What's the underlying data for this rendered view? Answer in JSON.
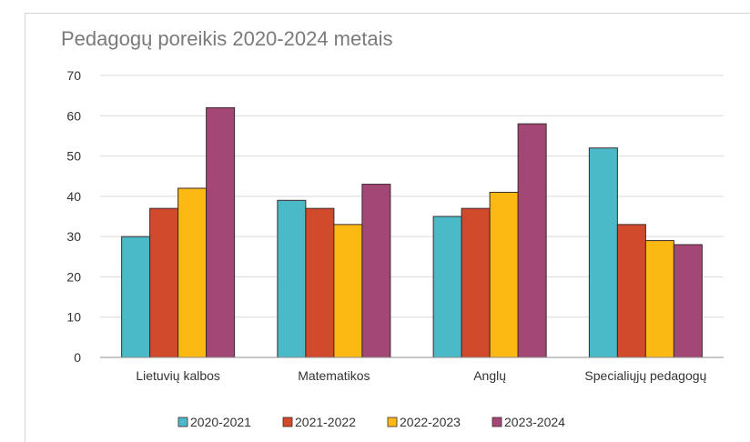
{
  "chart_data": {
    "type": "bar",
    "title": "Pedagogų poreikis 2020-2024 metais",
    "xlabel": "",
    "ylabel": "",
    "ylim": [
      0,
      70
    ],
    "yticks": [
      0,
      10,
      20,
      30,
      40,
      50,
      60,
      70
    ],
    "grid": true,
    "legend_position": "bottom",
    "categories": [
      "Lietuvių kalbos",
      "Matematikos",
      "Anglų",
      "Specialiųjų pedagogų"
    ],
    "series": [
      {
        "name": "2020-2021",
        "color": "#4bbac8",
        "values": [
          30,
          39,
          35,
          52
        ]
      },
      {
        "name": "2021-2022",
        "color": "#d04a2b",
        "values": [
          37,
          37,
          37,
          33
        ]
      },
      {
        "name": "2022-2023",
        "color": "#fdb913",
        "values": [
          42,
          33,
          41,
          29
        ]
      },
      {
        "name": "2023-2024",
        "color": "#a34876",
        "values": [
          62,
          43,
          58,
          28
        ]
      }
    ]
  }
}
